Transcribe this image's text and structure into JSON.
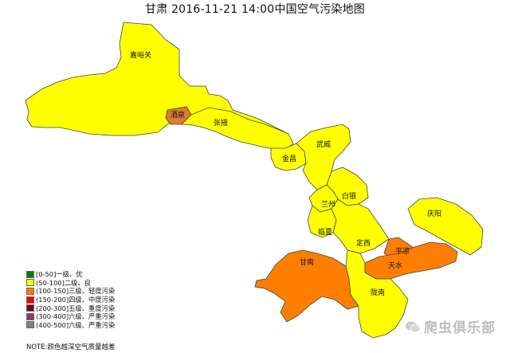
{
  "title": "甘肃 2016-11-21 14:00中国空气污染地图",
  "legend": [
    {
      "label": "[0-50]一级、优",
      "color": "#008000"
    },
    {
      "label": "(50-100]二级、良",
      "color": "#ffff00"
    },
    {
      "label": "(100-150]三级、轻度污染",
      "color": "#ff7e00"
    },
    {
      "label": "(150-200]四级、中度污染",
      "color": "#ff0000"
    },
    {
      "label": "(200-300]五级、重度污染",
      "color": "#7e0023"
    },
    {
      "label": "(300-400]六级、严重污染",
      "color": "#8b3a62"
    },
    {
      "label": "(400-500]六级、严重污染",
      "color": "#808080"
    }
  ],
  "note": "NOTE:颜色越深空气质量越差",
  "watermark": "爬虫俱乐部",
  "regions": [
    {
      "name": "嘉峪关",
      "level": "(50-100]二级、良",
      "color": "#ffff00"
    },
    {
      "name": "酒泉",
      "level": "(100-150]三级、轻度污染",
      "color": "#e07a30"
    },
    {
      "name": "张掖",
      "level": "(50-100]二级、良",
      "color": "#ffff00"
    },
    {
      "name": "金昌",
      "level": "(50-100]二级、良",
      "color": "#ffff00"
    },
    {
      "name": "武威",
      "level": "(50-100]二级、良",
      "color": "#ffff00"
    },
    {
      "name": "白银",
      "level": "(50-100]二级、良",
      "color": "#ffff00"
    },
    {
      "name": "兰州",
      "level": "(50-100]二级、良",
      "color": "#ffff00"
    },
    {
      "name": "临夏",
      "level": "(50-100]二级、良",
      "color": "#ffff00"
    },
    {
      "name": "定西",
      "level": "(50-100]二级、良",
      "color": "#ffff00"
    },
    {
      "name": "庆阳",
      "level": "(50-100]二级、良",
      "color": "#ffff00"
    },
    {
      "name": "平凉",
      "level": "(100-150]三级、轻度污染",
      "color": "#ff7e00"
    },
    {
      "name": "天水",
      "level": "(100-150]三级、轻度污染",
      "color": "#ff7e00"
    },
    {
      "name": "甘南",
      "level": "(100-150]三级、轻度污染",
      "color": "#ff7e00"
    },
    {
      "name": "陇南",
      "level": "(50-100]二级、良",
      "color": "#ffff00"
    }
  ]
}
